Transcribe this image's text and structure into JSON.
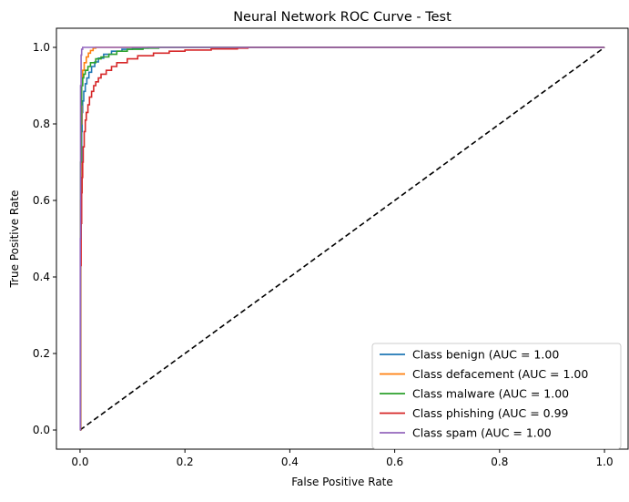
{
  "chart_data": {
    "type": "line",
    "title": "Neural Network ROC Curve - Test",
    "xlabel": "False Positive Rate",
    "ylabel": "True Positive Rate",
    "xlim": [
      -0.045,
      1.045
    ],
    "ylim": [
      -0.05,
      1.05
    ],
    "x_ticks": [
      0.0,
      0.2,
      0.4,
      0.6,
      0.8,
      1.0
    ],
    "y_ticks": [
      0.0,
      0.2,
      0.4,
      0.6,
      0.8,
      1.0
    ],
    "x_tick_labels": [
      "0.0",
      "0.2",
      "0.4",
      "0.6",
      "0.8",
      "1.0"
    ],
    "y_tick_labels": [
      "0.0",
      "0.2",
      "0.4",
      "0.6",
      "0.8",
      "1.0"
    ],
    "grid": false,
    "legend_position": "lower-right",
    "series": [
      {
        "name": "Class benign (AUC = 1.00",
        "color": "#1f77b4",
        "x": [
          0,
          0.001,
          0.002,
          0.003,
          0.004,
          0.005,
          0.007,
          0.01,
          0.013,
          0.017,
          0.022,
          0.028,
          0.035,
          0.045,
          0.06,
          0.08,
          0.1,
          0.13,
          0.2,
          1.0
        ],
        "y": [
          0,
          0.5,
          0.68,
          0.78,
          0.83,
          0.86,
          0.885,
          0.905,
          0.92,
          0.935,
          0.95,
          0.962,
          0.972,
          0.982,
          0.99,
          0.995,
          0.998,
          1.0,
          1.0,
          1.0
        ]
      },
      {
        "name": "Class defacement (AUC = 1.00",
        "color": "#ff7f0e",
        "x": [
          0,
          0.001,
          0.002,
          0.003,
          0.005,
          0.008,
          0.012,
          0.016,
          0.02,
          0.025,
          0.03,
          1.0
        ],
        "y": [
          0,
          0.6,
          0.8,
          0.9,
          0.94,
          0.96,
          0.975,
          0.985,
          0.992,
          0.998,
          1.0,
          1.0
        ]
      },
      {
        "name": "Class malware (AUC = 1.00",
        "color": "#2ca02c",
        "x": [
          0,
          0.001,
          0.002,
          0.003,
          0.005,
          0.007,
          0.01,
          0.015,
          0.02,
          0.03,
          0.04,
          0.055,
          0.07,
          0.09,
          0.12,
          0.15,
          0.2,
          1.0
        ],
        "y": [
          0,
          0.7,
          0.85,
          0.9,
          0.92,
          0.93,
          0.94,
          0.95,
          0.96,
          0.97,
          0.975,
          0.982,
          0.99,
          0.995,
          0.998,
          1.0,
          1.0,
          1.0
        ]
      },
      {
        "name": "Class phishing (AUC = 0.99",
        "color": "#d62728",
        "x": [
          0,
          0.001,
          0.002,
          0.003,
          0.004,
          0.005,
          0.006,
          0.008,
          0.01,
          0.012,
          0.015,
          0.018,
          0.022,
          0.026,
          0.03,
          0.035,
          0.04,
          0.05,
          0.06,
          0.07,
          0.09,
          0.11,
          0.14,
          0.17,
          0.2,
          0.25,
          0.3,
          0.32,
          1.0
        ],
        "y": [
          0,
          0.43,
          0.54,
          0.62,
          0.66,
          0.7,
          0.74,
          0.78,
          0.81,
          0.83,
          0.85,
          0.87,
          0.885,
          0.9,
          0.91,
          0.92,
          0.93,
          0.94,
          0.95,
          0.96,
          0.97,
          0.978,
          0.985,
          0.99,
          0.993,
          0.996,
          0.998,
          1.0,
          1.0
        ]
      },
      {
        "name": "Class spam (AUC = 1.00",
        "color": "#9467bd",
        "x": [
          0,
          0.0005,
          0.001,
          0.002,
          0.003,
          0.005,
          1.0
        ],
        "y": [
          0,
          0.5,
          0.9,
          0.98,
          0.995,
          1.0,
          1.0
        ]
      }
    ],
    "reference_line": {
      "x": [
        0,
        1
      ],
      "y": [
        0,
        1
      ],
      "color": "#000000",
      "dashed": true
    }
  }
}
